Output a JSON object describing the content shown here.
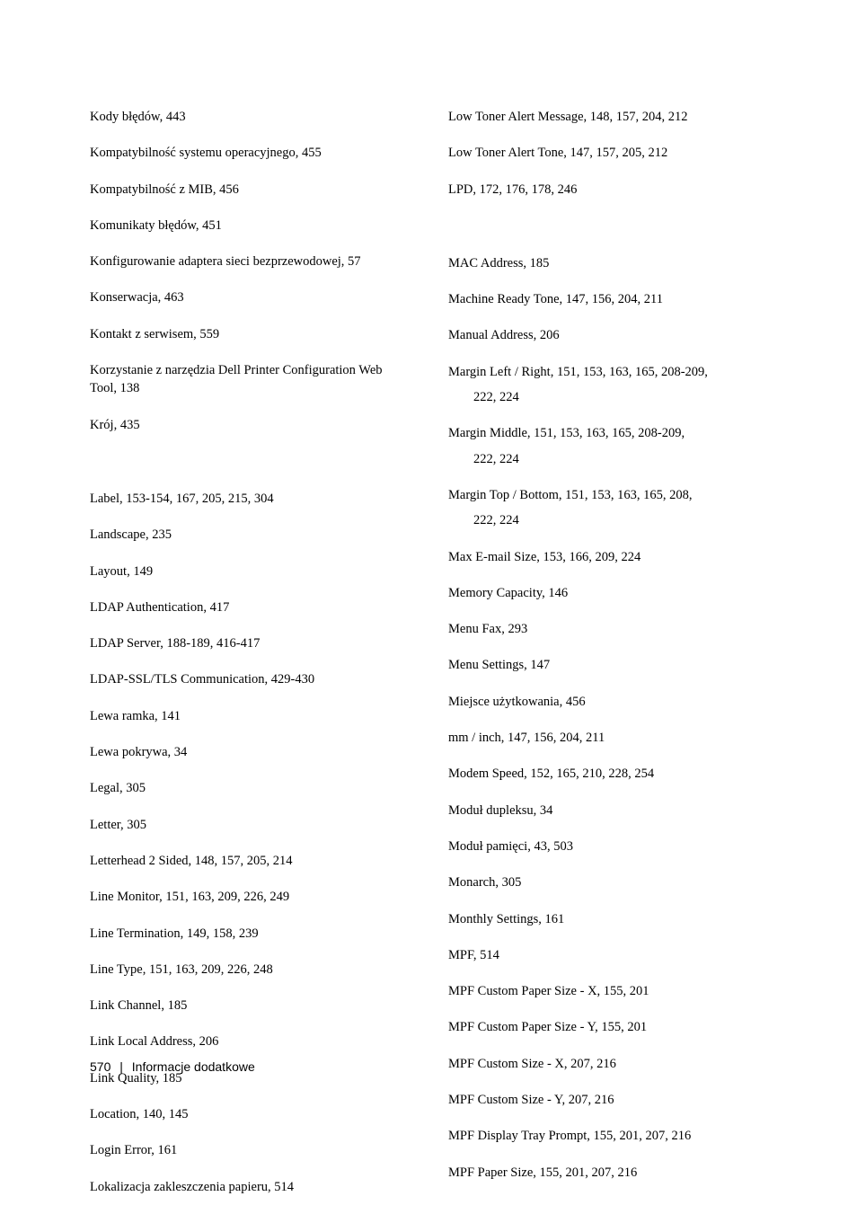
{
  "left_column": [
    {
      "text": "Kody błędów, 443"
    },
    {
      "text": "Kompatybilność systemu operacyjnego, 455"
    },
    {
      "text": "Kompatybilność z MIB, 456"
    },
    {
      "text": "Komunikaty błędów, 451"
    },
    {
      "text": "Konfigurowanie adaptera sieci bezprzewodowej, 57"
    },
    {
      "text": "Konserwacja, 463"
    },
    {
      "text": "Kontakt z serwisem, 559"
    },
    {
      "text": "Korzystanie z narzędzia Dell Printer Configuration Web Tool, 138"
    },
    {
      "text": "Krój, 435"
    },
    {
      "gap": true
    },
    {
      "text": "Label, 153-154, 167, 205, 215, 304"
    },
    {
      "text": "Landscape, 235"
    },
    {
      "text": "Layout, 149"
    },
    {
      "text": "LDAP Authentication, 417"
    },
    {
      "text": "LDAP Server, 188-189, 416-417"
    },
    {
      "text": "LDAP-SSL/TLS Communication, 429-430"
    },
    {
      "text": "Lewa ramka, 141"
    },
    {
      "text": "Lewa pokrywa, 34"
    },
    {
      "text": "Legal, 305"
    },
    {
      "text": "Letter, 305"
    },
    {
      "text": "Letterhead 2 Sided, 148, 157, 205, 214"
    },
    {
      "text": "Line Monitor, 151, 163, 209, 226, 249"
    },
    {
      "text": "Line Termination, 149, 158, 239"
    },
    {
      "text": "Line Type, 151, 163, 209, 226, 248"
    },
    {
      "text": "Link Channel, 185"
    },
    {
      "text": "Link Local Address, 206"
    },
    {
      "text": "Link Quality, 185"
    },
    {
      "text": "Location, 140, 145"
    },
    {
      "text": "Login Error, 161"
    },
    {
      "text": "Lokalizacja zakleszczenia papieru, 514"
    }
  ],
  "right_column": [
    {
      "text": "Low Toner Alert Message, 148, 157, 204, 212"
    },
    {
      "text": "Low Toner Alert Tone, 147, 157, 205, 212"
    },
    {
      "text": "LPD, 172, 176, 178, 246"
    },
    {
      "gap": true
    },
    {
      "text": "MAC Address, 185"
    },
    {
      "text": "Machine Ready Tone, 147, 156, 204, 211"
    },
    {
      "text": "Manual Address, 206"
    },
    {
      "text": "Margin Left / Right, 151, 153, 163, 165, 208-209,",
      "sub": "222, 224"
    },
    {
      "text": "Margin Middle, 151, 153, 163, 165, 208-209,",
      "sub": "222, 224"
    },
    {
      "text": "Margin Top / Bottom, 151, 153, 163, 165, 208,",
      "sub": "222, 224"
    },
    {
      "text": "Max E-mail Size, 153, 166, 209, 224"
    },
    {
      "text": "Memory Capacity, 146"
    },
    {
      "text": "Menu Fax, 293"
    },
    {
      "text": "Menu Settings, 147"
    },
    {
      "text": "Miejsce użytkowania, 456"
    },
    {
      "text": "mm / inch, 147, 156, 204, 211"
    },
    {
      "text": "Modem Speed, 152, 165, 210, 228, 254"
    },
    {
      "text": "Moduł dupleksu, 34"
    },
    {
      "text": "Moduł pamięci, 43, 503"
    },
    {
      "text": "Monarch, 305"
    },
    {
      "text": "Monthly Settings, 161"
    },
    {
      "text": "MPF, 514"
    },
    {
      "text": "MPF Custom Paper Size - X, 155, 201"
    },
    {
      "text": "MPF Custom Paper Size - Y, 155, 201"
    },
    {
      "text": "MPF Custom Size - X, 207, 216"
    },
    {
      "text": "MPF Custom Size - Y, 207, 216"
    },
    {
      "text": "MPF Display Tray Prompt, 155, 201, 207, 216"
    },
    {
      "text": "MPF Paper Size, 155, 201, 207, 216"
    }
  ],
  "footer": {
    "page_number": "570",
    "separator": "|",
    "section_label": "Informacje dodatkowe"
  }
}
